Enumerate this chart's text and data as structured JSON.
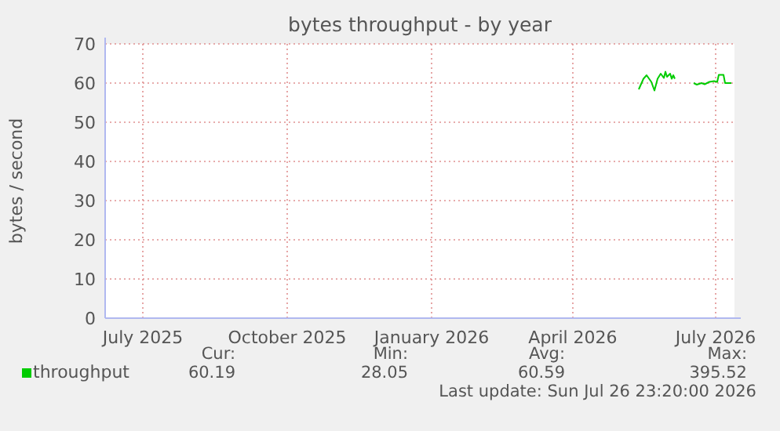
{
  "chart_data": {
    "type": "line",
    "title": "bytes throughput - by year",
    "ylabel": "bytes / second",
    "xlim": [
      "2025-06-21",
      "2026-07-27"
    ],
    "xticks": [
      {
        "value": "2025-07-15",
        "label": "July 2025"
      },
      {
        "value": "2025-10-15",
        "label": "October 2025"
      },
      {
        "value": "2026-01-15",
        "label": "January 2026"
      },
      {
        "value": "2026-04-15",
        "label": "April 2026"
      },
      {
        "value": "2026-07-15",
        "label": "July 2026"
      }
    ],
    "ylim": [
      0,
      70
    ],
    "yticks": [
      0,
      10,
      20,
      30,
      40,
      50,
      60,
      70
    ],
    "grid": true,
    "legend": "bottom",
    "x": [
      "2026-05-27",
      "2026-05-30",
      "2026-06-01",
      "2026-06-04",
      "2026-06-06",
      "2026-06-08",
      "2026-06-10",
      "2026-06-12",
      "2026-06-13",
      "2026-06-14",
      "2026-06-16",
      "2026-06-17",
      "2026-06-18",
      "2026-06-19",
      "2026-06-20",
      "2026-07-01",
      "2026-07-03",
      "2026-07-06",
      "2026-07-08",
      "2026-07-11",
      "2026-07-14",
      "2026-07-16",
      "2026-07-17",
      "2026-07-20",
      "2026-07-21",
      "2026-07-25"
    ],
    "series": [
      {
        "name": "throughput",
        "color": "#00cc00",
        "values": [
          58.4,
          61.1,
          62,
          60.3,
          58.1,
          61.1,
          62.4,
          61.3,
          62.9,
          61.6,
          62.4,
          61.1,
          62,
          61.1,
          null,
          60,
          59.6,
          60,
          59.7,
          60.3,
          60.5,
          60.3,
          62.1,
          62.1,
          60,
          60
        ]
      }
    ],
    "annotations": [
      "Cur:",
      "Min:",
      "Avg:",
      "Max:",
      "60.19",
      "28.05",
      "60.59",
      "395.52",
      "Last update: Sun Jul 26 23:20:00 2026"
    ]
  }
}
